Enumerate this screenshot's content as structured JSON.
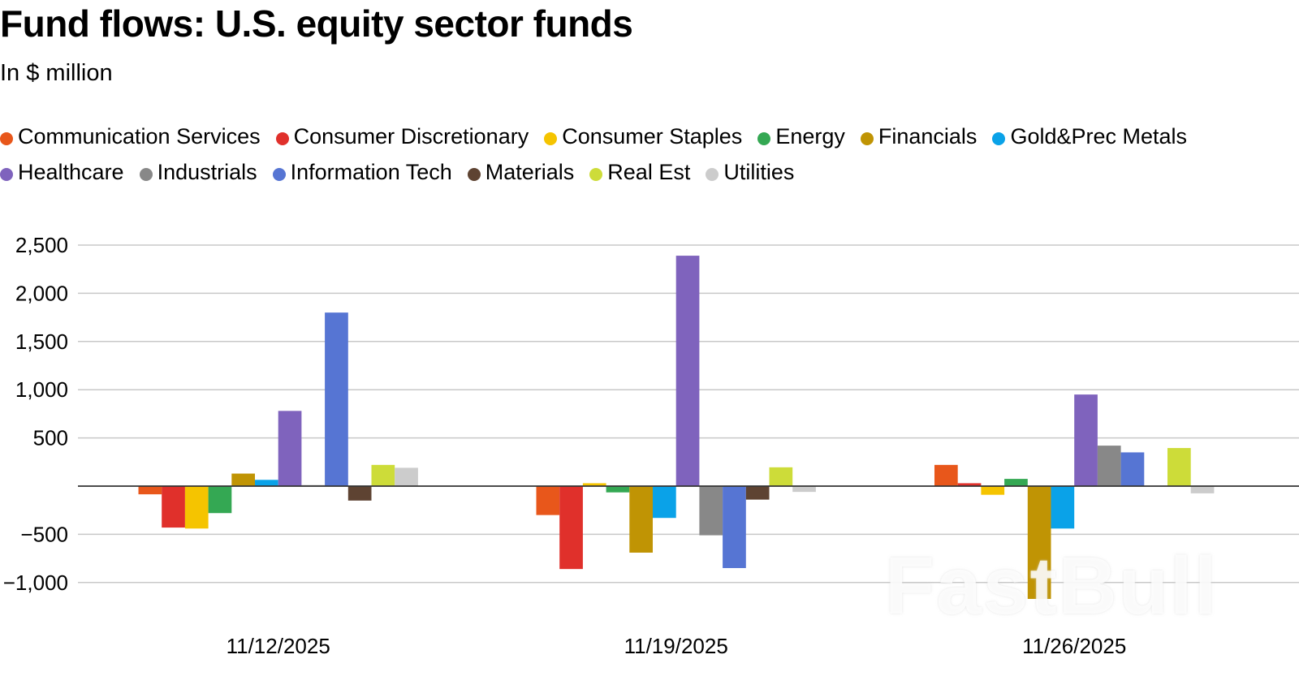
{
  "title": "Fund flows: U.S. equity sector funds",
  "subtitle": "In $ million",
  "watermark": "FastBull",
  "chart_data": {
    "type": "bar",
    "title": "Fund flows: U.S. equity sector funds",
    "subtitle": "In $ million",
    "xlabel": "",
    "ylabel": "",
    "categories": [
      "11/12/2025",
      "11/19/2025",
      "11/26/2025"
    ],
    "ylim": [
      -1250,
      2500
    ],
    "yticks": [
      -1000,
      -500,
      500,
      1000,
      1500,
      2000,
      2500
    ],
    "ytick_labels": [
      "−1,000",
      "−500",
      "500",
      "1,000",
      "1,500",
      "2,000",
      "2,500"
    ],
    "grid": true,
    "legend_position": "top",
    "series": [
      {
        "name": "Communication Services",
        "color": "#e8571b",
        "values": [
          -85,
          -300,
          220
        ]
      },
      {
        "name": "Consumer Discretionary",
        "color": "#e0302b",
        "values": [
          -430,
          -860,
          30
        ]
      },
      {
        "name": "Consumer Staples",
        "color": "#f5c400",
        "values": [
          -440,
          30,
          -90
        ]
      },
      {
        "name": "Energy",
        "color": "#34a853",
        "values": [
          -280,
          -65,
          75
        ]
      },
      {
        "name": "Financials",
        "color": "#c09404",
        "values": [
          130,
          -690,
          -1170
        ]
      },
      {
        "name": "Gold&Prec Metals",
        "color": "#0aa2e8",
        "values": [
          65,
          -330,
          -440
        ]
      },
      {
        "name": "Healthcare",
        "color": "#7f63bd",
        "values": [
          780,
          2390,
          950
        ]
      },
      {
        "name": "Industrials",
        "color": "#888888",
        "values": [
          10,
          -510,
          420
        ]
      },
      {
        "name": "Information Tech",
        "color": "#5675d3",
        "values": [
          1800,
          -850,
          350
        ]
      },
      {
        "name": "Materials",
        "color": "#5e4332",
        "values": [
          -150,
          -140,
          0
        ]
      },
      {
        "name": "Real Est",
        "color": "#cddc39",
        "values": [
          220,
          195,
          395
        ]
      },
      {
        "name": "Utilities",
        "color": "#cccccc",
        "values": [
          190,
          -60,
          -75
        ]
      }
    ]
  }
}
